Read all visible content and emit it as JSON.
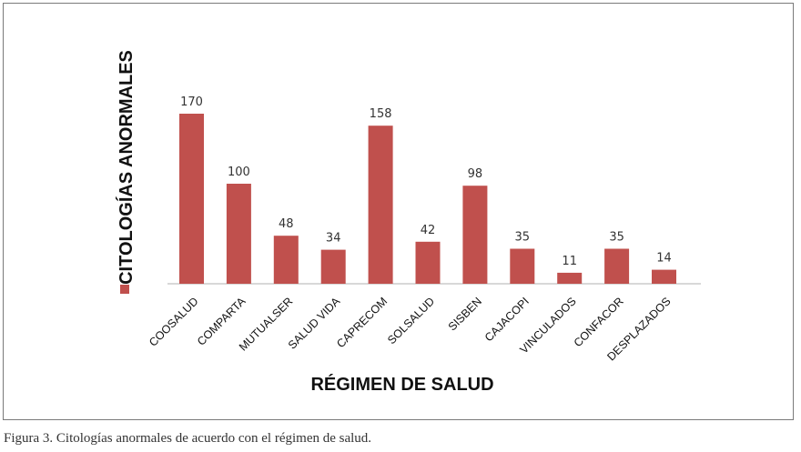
{
  "chart_data": {
    "type": "bar",
    "categories": [
      "COOSALUD",
      "COMPARTA",
      "MUTUALSER",
      "SALUD VIDA",
      "CAPRECOM",
      "SOLSALUD",
      "SISBEN",
      "CAJACOPI",
      "VINCULADOS",
      "CONFACOR",
      "DESPLAZADOS"
    ],
    "values": [
      170,
      100,
      48,
      34,
      158,
      42,
      98,
      35,
      11,
      35,
      14
    ],
    "data_labels": [
      "170",
      "100",
      "48",
      "34",
      "158",
      "42",
      "98",
      "35",
      "11",
      "35",
      "14"
    ],
    "xlabel": "RÉGIMEN DE SALUD",
    "ylabel": "CITOLOGÍAS ANORMALES",
    "ylim": [
      0,
      170
    ],
    "bar_color": "#c0504d",
    "grid": false,
    "legend": "left"
  },
  "caption": "Figura 3. Citologías anormales de acuerdo con el régimen de salud."
}
